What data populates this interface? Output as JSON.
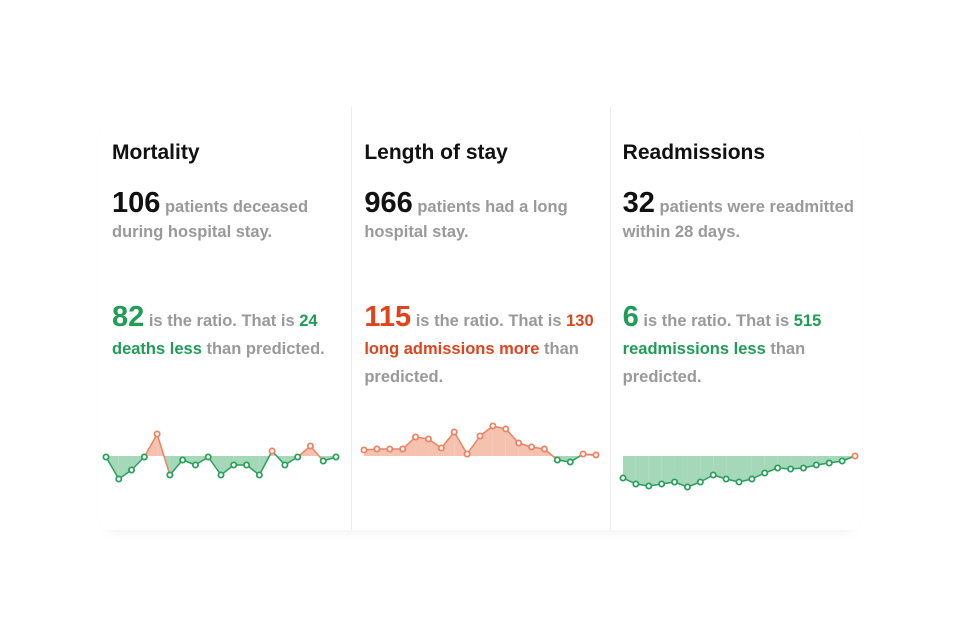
{
  "colors": {
    "good": "#1f9d57",
    "bad": "#e0441c",
    "good_fill": "#a4d8b9",
    "bad_fill": "#f6c2b0",
    "good_line": "#2aa05c",
    "bad_line": "#ee8263"
  },
  "cards": [
    {
      "title": "Mortality",
      "count": "106",
      "count_text": " patients deceased during hospital stay.",
      "ratio": "82",
      "ratio_text": " is the ratio. That is ",
      "delta_num": "24",
      "delta_phrase": "deaths less",
      "tail": " than predicted.",
      "status": "good",
      "trend": [
        -1,
        -23,
        -14,
        -1,
        22,
        -19,
        -4,
        -9,
        -1,
        -19,
        -9,
        -9,
        -19,
        5,
        -9,
        -1,
        10,
        -5,
        -1
      ]
    },
    {
      "title": "Length of stay",
      "count": "966",
      "count_text": " patients had a long hospital stay.",
      "ratio": "115",
      "ratio_text": " is the ratio. That is ",
      "delta_num": "130",
      "delta_phrase": "long admissions more",
      "tail": " than predicted.",
      "status": "bad",
      "trend": [
        6,
        7,
        7,
        7,
        19,
        17,
        8,
        24,
        2,
        20,
        30,
        27,
        13,
        9,
        7,
        -4,
        -6,
        2,
        1
      ]
    },
    {
      "title": "Readmissions",
      "count": "32",
      "count_text": " patients were readmitted within 28 days.",
      "ratio": "6",
      "ratio_text": " is the ratio. That is ",
      "delta_num": "515",
      "delta_phrase": "readmissions less",
      "tail": " than predicted.",
      "status": "good",
      "trend": [
        -22,
        -28,
        -30,
        -28,
        -26,
        -31,
        -26,
        -19,
        -23,
        -26,
        -23,
        -17,
        -12,
        -13,
        -12,
        -9,
        -7,
        -5,
        0
      ]
    }
  ]
}
